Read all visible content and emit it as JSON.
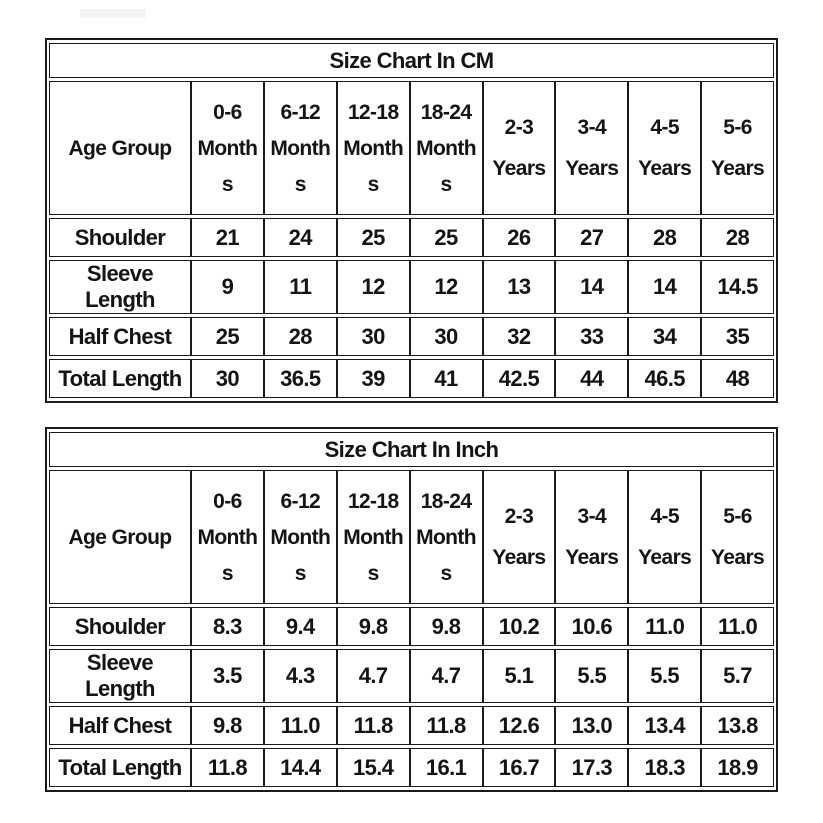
{
  "page": {
    "background": "#ffffff",
    "text_color": "#141414",
    "border_color": "#1a1a1a",
    "smudge_color": "#f6f4f4"
  },
  "chart_data": [
    {
      "type": "table",
      "title": "Size Chart In CM",
      "unit": "cm",
      "columns": [
        "Age Group",
        "0-6 Months",
        "6-12 Months",
        "12-18 Months",
        "18-24 Months",
        "2-3 Years",
        "3-4 Years",
        "4-5 Years",
        "5-6 Years"
      ],
      "header_lines": [
        [
          "Age Group"
        ],
        [
          "0-6",
          "Month",
          "s"
        ],
        [
          "6-12",
          "Month",
          "s"
        ],
        [
          "12-18",
          "Month",
          "s"
        ],
        [
          "18-24",
          "Month",
          "s"
        ],
        [
          "2-3",
          "Years"
        ],
        [
          "3-4",
          "Years"
        ],
        [
          "4-5",
          "Years"
        ],
        [
          "5-6",
          "Years"
        ]
      ],
      "rows": [
        [
          "Shoulder",
          "21",
          "24",
          "25",
          "25",
          "26",
          "27",
          "28",
          "28"
        ],
        [
          "Sleeve Length",
          "9",
          "11",
          "12",
          "12",
          "13",
          "14",
          "14",
          "14.5"
        ],
        [
          "Half Chest",
          "25",
          "28",
          "30",
          "30",
          "32",
          "33",
          "34",
          "35"
        ],
        [
          "Total Length",
          "30",
          "36.5",
          "39",
          "41",
          "42.5",
          "44",
          "46.5",
          "48"
        ]
      ]
    },
    {
      "type": "table",
      "title": "Size Chart In Inch",
      "unit": "inch",
      "columns": [
        "Age Group",
        "0-6 Months",
        "6-12 Months",
        "12-18 Months",
        "18-24 Months",
        "2-3 Years",
        "3-4 Years",
        "4-5 Years",
        "5-6 Years"
      ],
      "header_lines": [
        [
          "Age Group"
        ],
        [
          "0-6",
          "Month",
          "s"
        ],
        [
          "6-12",
          "Month",
          "s"
        ],
        [
          "12-18",
          "Month",
          "s"
        ],
        [
          "18-24",
          "Month",
          "s"
        ],
        [
          "2-3",
          "Years"
        ],
        [
          "3-4",
          "Years"
        ],
        [
          "4-5",
          "Years"
        ],
        [
          "5-6",
          "Years"
        ]
      ],
      "rows": [
        [
          "Shoulder",
          "8.3",
          "9.4",
          "9.8",
          "9.8",
          "10.2",
          "10.6",
          "11.0",
          "11.0"
        ],
        [
          "Sleeve Length",
          "3.5",
          "4.3",
          "4.7",
          "4.7",
          "5.1",
          "5.5",
          "5.5",
          "5.7"
        ],
        [
          "Half Chest",
          "9.8",
          "11.0",
          "11.8",
          "11.8",
          "12.6",
          "13.0",
          "13.4",
          "13.8"
        ],
        [
          "Total Length",
          "11.8",
          "14.4",
          "15.4",
          "16.1",
          "16.7",
          "17.3",
          "18.3",
          "18.9"
        ]
      ]
    }
  ]
}
